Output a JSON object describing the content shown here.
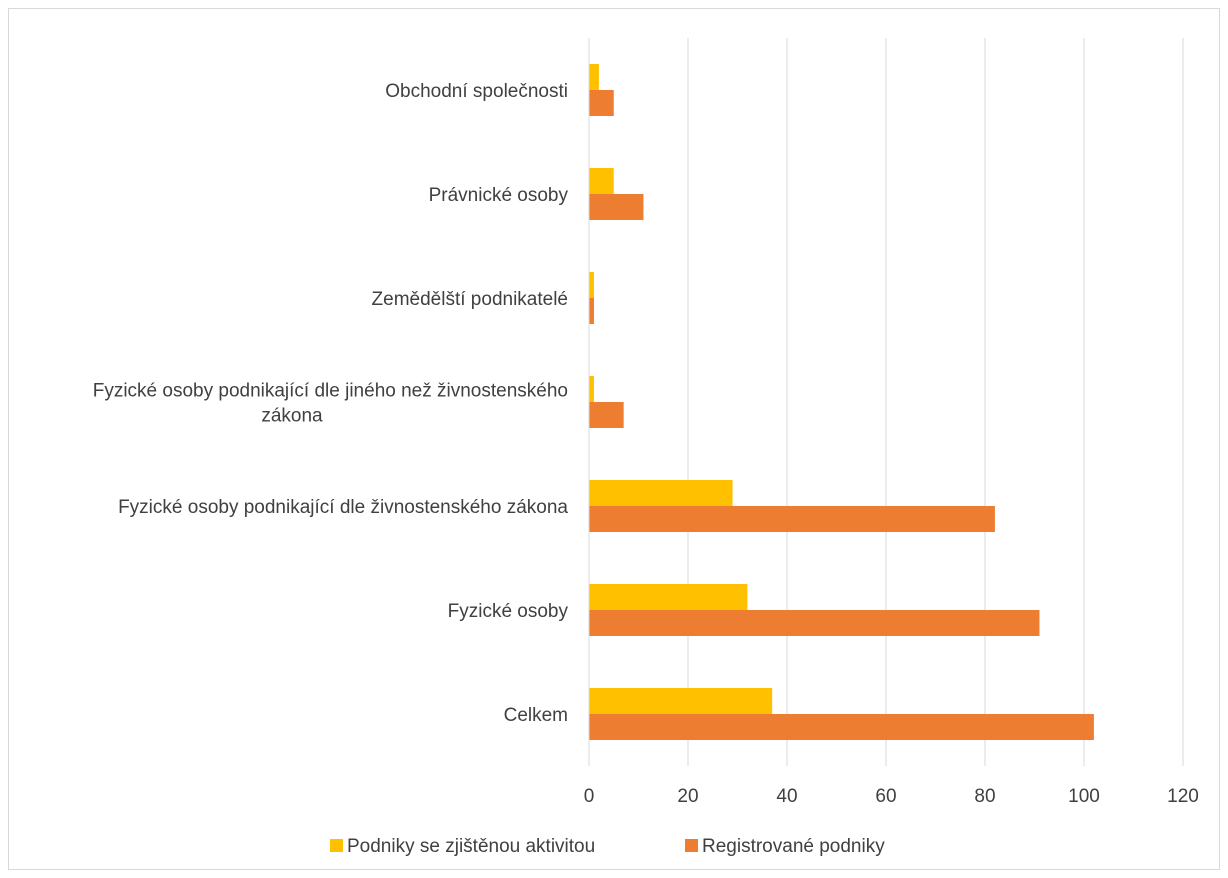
{
  "chart_data": {
    "type": "bar",
    "orientation": "horizontal",
    "categories": [
      "Obchodní společnosti",
      "Právnické osoby",
      "Zemědělští podnikatelé",
      "Fyzické osoby podnikající dle jiného než živnostenského zákona",
      "Fyzické osoby podnikající dle živnostenského zákona",
      "Fyzické osoby",
      "Celkem"
    ],
    "category_lines": [
      [
        "Obchodní společnosti"
      ],
      [
        "Právnické osoby"
      ],
      [
        "Zemědělští podnikatelé"
      ],
      [
        "Fyzické osoby podnikající dle jiného než živnostenského",
        "zákona"
      ],
      [
        "Fyzické osoby podnikající dle živnostenského zákona"
      ],
      [
        "Fyzické osoby"
      ],
      [
        "Celkem"
      ]
    ],
    "series": [
      {
        "name": "Podniky se zjištěnou aktivitou",
        "color": "#FFC000",
        "values": [
          2,
          5,
          1,
          1,
          29,
          32,
          37
        ]
      },
      {
        "name": "Registrované podniky",
        "color": "#ED7D31",
        "values": [
          5,
          11,
          1,
          7,
          82,
          91,
          102
        ]
      }
    ],
    "xlim": [
      0,
      120
    ],
    "xticks": [
      "0",
      "20",
      "40",
      "60",
      "80",
      "100",
      "120"
    ],
    "grid": true,
    "legend_position": "bottom"
  }
}
